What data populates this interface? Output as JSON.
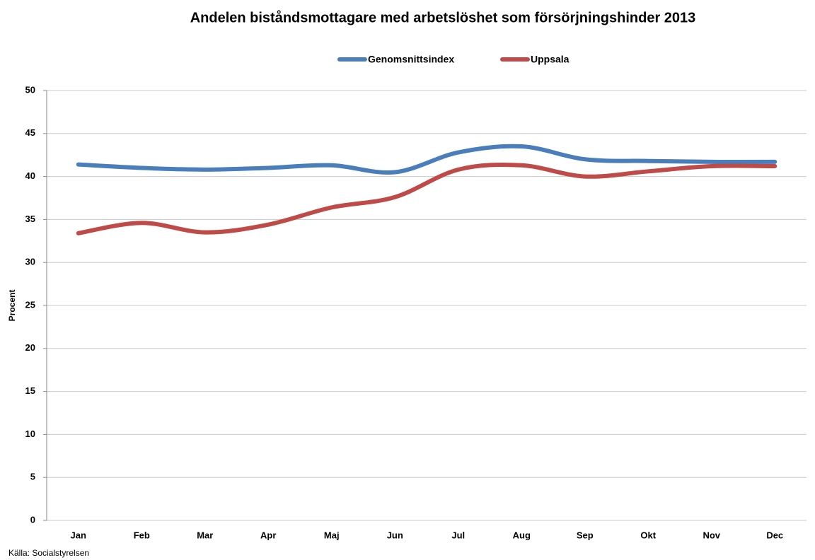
{
  "chart_data": {
    "type": "line",
    "title": "Andelen biståndsmottagare med arbetslöshet som försörjningshinder 2013",
    "y_label": "Procent",
    "source": "Källa: Socialstyrelsen",
    "categories": [
      "Jan",
      "Feb",
      "Mar",
      "Apr",
      "Maj",
      "Jun",
      "Jul",
      "Aug",
      "Sep",
      "Okt",
      "Nov",
      "Dec"
    ],
    "series": [
      {
        "name": "Genomsnittsindex",
        "color": "#4a7ebb",
        "values": [
          41.4,
          41.0,
          40.8,
          41.0,
          41.3,
          40.5,
          42.8,
          43.5,
          42.0,
          41.8,
          41.7,
          41.7
        ]
      },
      {
        "name": "Uppsala",
        "color": "#be4b48",
        "values": [
          33.4,
          34.6,
          33.5,
          34.4,
          36.4,
          37.6,
          40.8,
          41.3,
          40.0,
          40.6,
          41.2,
          41.2
        ]
      }
    ],
    "ylim": [
      0,
      50
    ],
    "yticks": [
      0,
      5,
      10,
      15,
      20,
      25,
      30,
      35,
      40,
      45,
      50
    ],
    "grid": true,
    "legend": "top"
  }
}
